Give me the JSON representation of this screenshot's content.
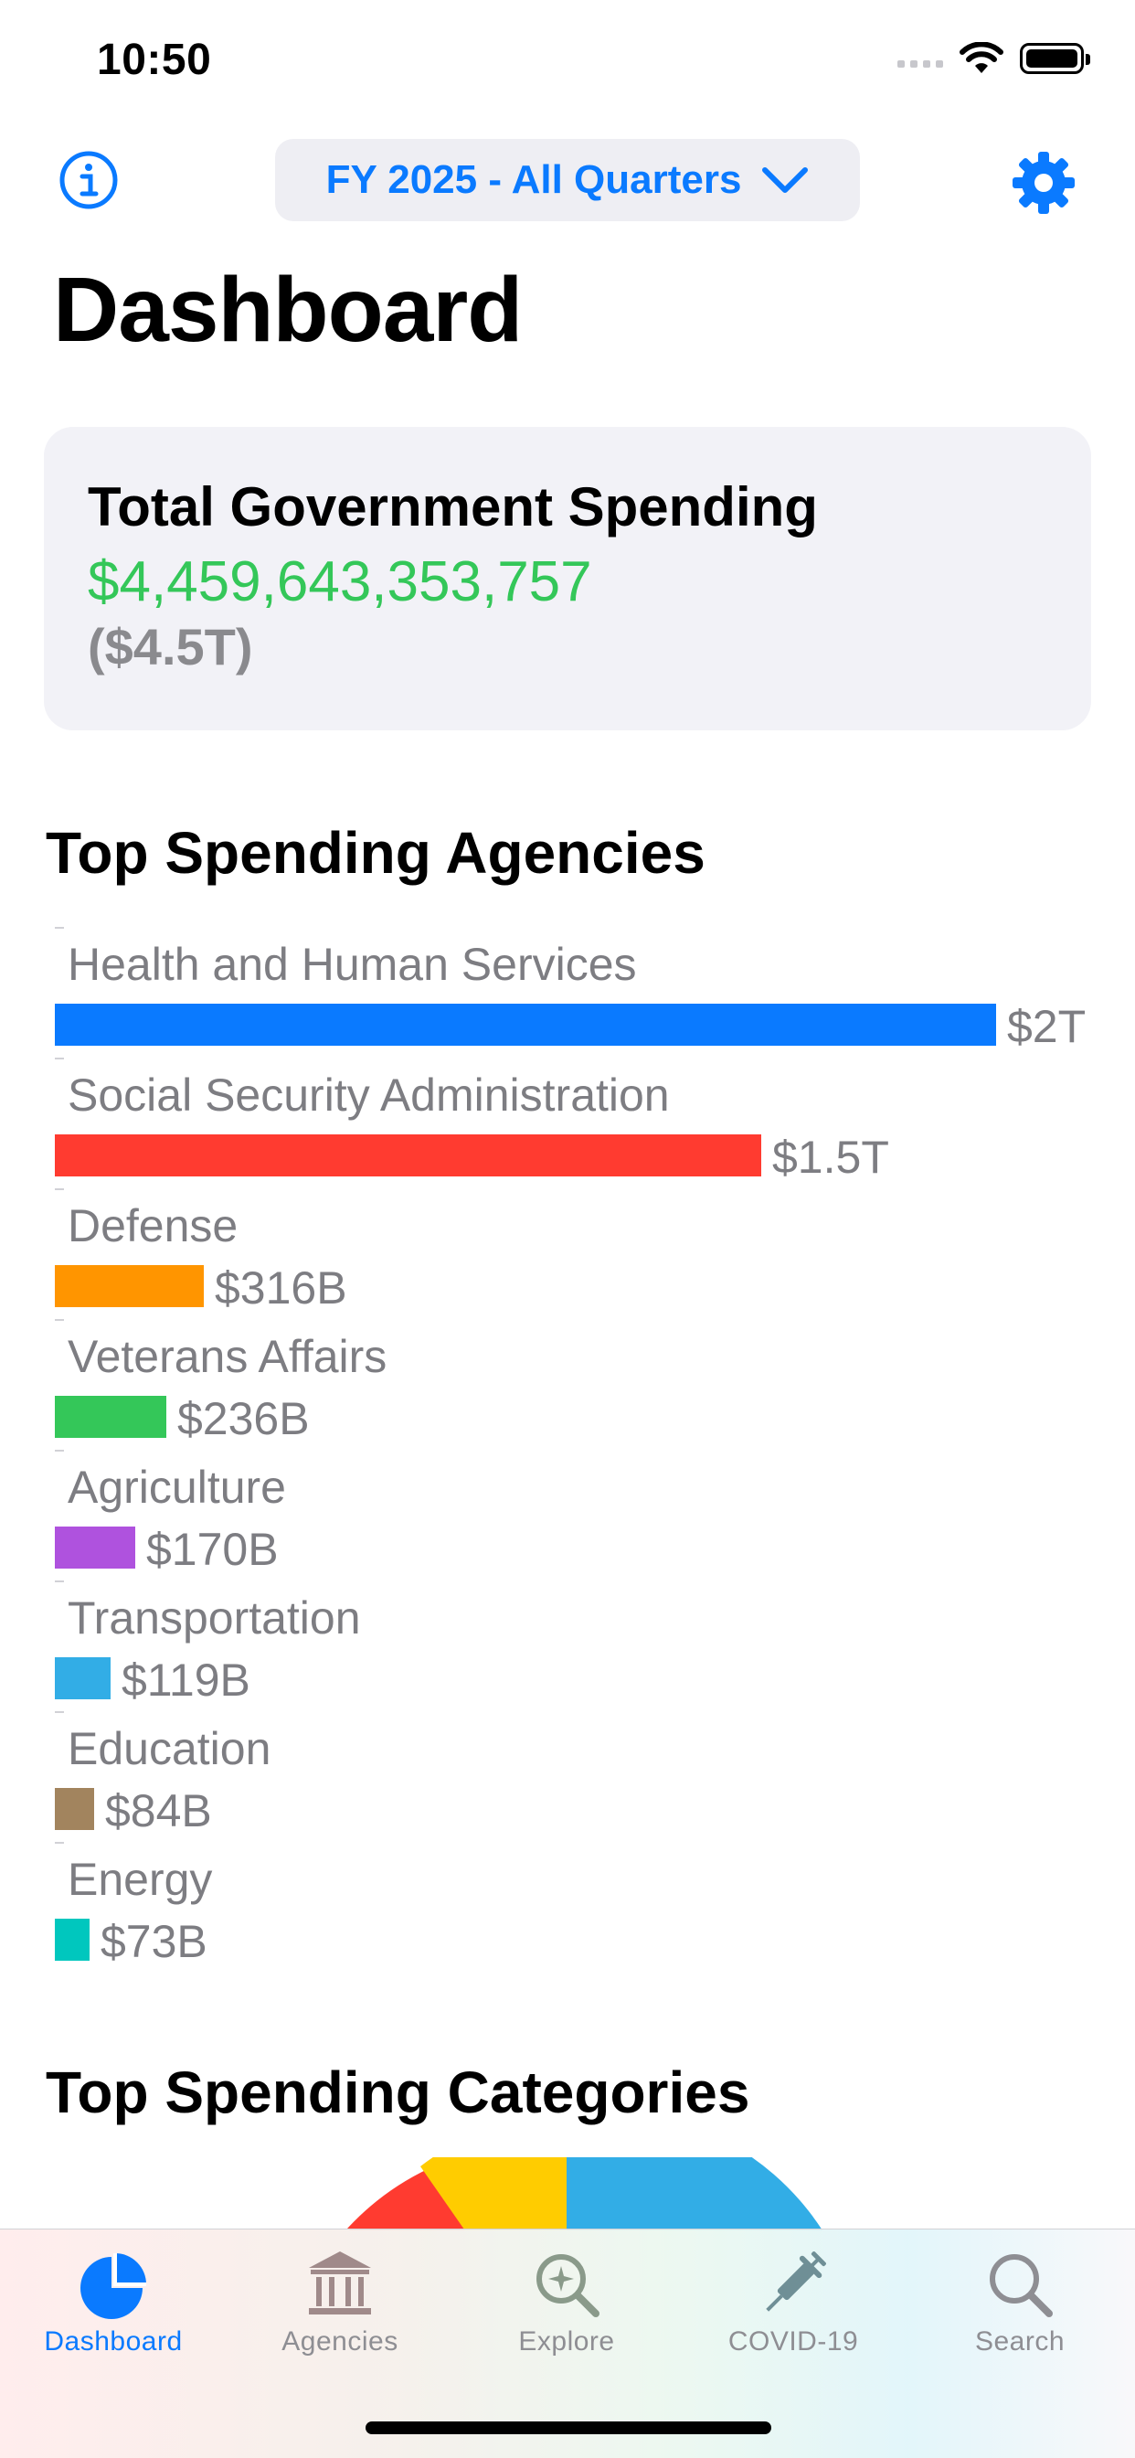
{
  "status_bar": {
    "time": "10:50"
  },
  "nav": {
    "period_label": "FY 2025 - All Quarters"
  },
  "page_title": "Dashboard",
  "total_card": {
    "label": "Total Government Spending",
    "value": "$4,459,643,353,757",
    "short_value": "($4.5T)"
  },
  "sections": {
    "agencies_title": "Top Spending Agencies",
    "categories_title": "Top Spending Categories"
  },
  "chart_data": [
    {
      "type": "bar",
      "orientation": "horizontal",
      "title": "Top Spending Agencies",
      "categories": [
        "Health and Human Services",
        "Social Security Administration",
        "Defense",
        "Veterans Affairs",
        "Agriculture",
        "Transportation",
        "Education",
        "Energy"
      ],
      "values": [
        2000,
        1500,
        316,
        236,
        170,
        119,
        84,
        73
      ],
      "value_units": "billions USD",
      "value_labels": [
        "$2T",
        "$1.5T",
        "$316B",
        "$236B",
        "$170B",
        "$119B",
        "$84B",
        "$73B"
      ],
      "colors": [
        "#0a7aff",
        "#ff3b30",
        "#ff9500",
        "#34c759",
        "#af52de",
        "#32ade6",
        "#a2845e",
        "#00c7be"
      ]
    }
  ],
  "categories_chart": {
    "type": "pie",
    "visible_colors": [
      "#ff3b30",
      "#ffcc00",
      "#32ade6"
    ]
  },
  "tab_bar": {
    "tabs": [
      {
        "label": "Dashboard",
        "icon": "pie-chart-icon",
        "active": true
      },
      {
        "label": "Agencies",
        "icon": "building-columns-icon",
        "active": false
      },
      {
        "label": "Explore",
        "icon": "magnifier-sparkle-icon",
        "active": false
      },
      {
        "label": "COVID-19",
        "icon": "syringe-icon",
        "active": false
      },
      {
        "label": "Search",
        "icon": "search-icon",
        "active": false
      }
    ]
  },
  "colors": {
    "accent": "#0a7aff",
    "positive": "#34c759",
    "secondary_text": "#8e8e93"
  }
}
